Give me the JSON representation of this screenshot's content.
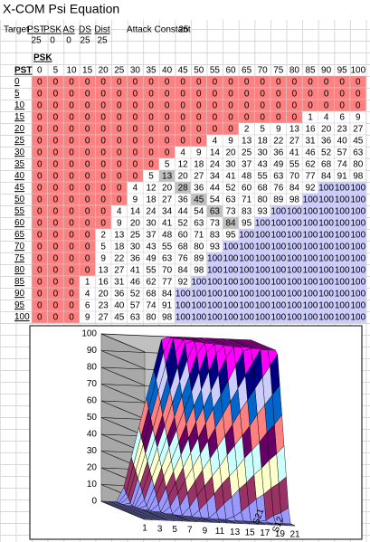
{
  "header": {
    "title": "X-COM Psi Equation"
  },
  "inputs": {
    "target_label": "Target",
    "labels": [
      "PST",
      "PSK",
      "AS",
      "DS",
      "Dist"
    ],
    "values": [
      25,
      0,
      0,
      25,
      25
    ],
    "attack_constant_label": "Attack Constant",
    "attack_constant": 25
  },
  "table": {
    "col_header": "PSK",
    "row_header": "PST",
    "cell_colors": {
      "zero": "#ff8080",
      "full": "#ccccff",
      "diagonal": "#c0c0c0",
      "other": "#ffffff"
    },
    "columns": [
      0,
      5,
      10,
      15,
      20,
      25,
      30,
      35,
      40,
      45,
      50,
      55,
      60,
      65,
      70,
      75,
      80,
      85,
      90,
      95,
      100
    ],
    "rows": [
      {
        "label": 0,
        "values": [
          0,
          0,
          0,
          0,
          0,
          0,
          0,
          0,
          0,
          0,
          0,
          0,
          0,
          0,
          0,
          0,
          0,
          0,
          0,
          0,
          0
        ]
      },
      {
        "label": 5,
        "values": [
          0,
          0,
          0,
          0,
          0,
          0,
          0,
          0,
          0,
          0,
          0,
          0,
          0,
          0,
          0,
          0,
          0,
          0,
          0,
          0,
          0
        ]
      },
      {
        "label": 10,
        "values": [
          0,
          0,
          0,
          0,
          0,
          0,
          0,
          0,
          0,
          0,
          0,
          0,
          0,
          0,
          0,
          0,
          0,
          0,
          0,
          0,
          0
        ]
      },
      {
        "label": 15,
        "values": [
          0,
          0,
          0,
          0,
          0,
          0,
          0,
          0,
          0,
          0,
          0,
          0,
          0,
          0,
          0,
          0,
          0,
          1,
          4,
          6,
          9
        ]
      },
      {
        "label": 20,
        "values": [
          0,
          0,
          0,
          0,
          0,
          0,
          0,
          0,
          0,
          0,
          0,
          0,
          0,
          2,
          5,
          9,
          13,
          16,
          20,
          23,
          27
        ]
      },
      {
        "label": 25,
        "values": [
          0,
          0,
          0,
          0,
          0,
          0,
          0,
          0,
          0,
          0,
          0,
          4,
          9,
          13,
          18,
          22,
          27,
          31,
          36,
          40,
          45
        ]
      },
      {
        "label": 30,
        "values": [
          0,
          0,
          0,
          0,
          0,
          0,
          0,
          0,
          0,
          4,
          9,
          14,
          20,
          25,
          30,
          36,
          41,
          46,
          52,
          57,
          63
        ]
      },
      {
        "label": 35,
        "values": [
          0,
          0,
          0,
          0,
          0,
          0,
          0,
          0,
          5,
          12,
          18,
          24,
          30,
          37,
          43,
          49,
          55,
          62,
          68,
          74,
          80
        ]
      },
      {
        "label": 40,
        "values": [
          0,
          0,
          0,
          0,
          0,
          0,
          0,
          5,
          13,
          20,
          27,
          34,
          41,
          48,
          55,
          63,
          70,
          77,
          84,
          91,
          98
        ]
      },
      {
        "label": 45,
        "values": [
          0,
          0,
          0,
          0,
          0,
          0,
          4,
          12,
          20,
          28,
          36,
          44,
          52,
          60,
          68,
          76,
          84,
          92,
          100,
          100,
          100
        ]
      },
      {
        "label": 50,
        "values": [
          0,
          0,
          0,
          0,
          0,
          0,
          9,
          18,
          27,
          36,
          45,
          54,
          63,
          71,
          80,
          89,
          98,
          100,
          100,
          100,
          100
        ]
      },
      {
        "label": 55,
        "values": [
          0,
          0,
          0,
          0,
          0,
          4,
          14,
          24,
          34,
          44,
          54,
          63,
          73,
          83,
          93,
          100,
          100,
          100,
          100,
          100,
          100
        ]
      },
      {
        "label": 60,
        "values": [
          0,
          0,
          0,
          0,
          0,
          9,
          20,
          30,
          41,
          52,
          63,
          73,
          84,
          95,
          100,
          100,
          100,
          100,
          100,
          100,
          100
        ]
      },
      {
        "label": 65,
        "values": [
          0,
          0,
          0,
          0,
          2,
          13,
          25,
          37,
          48,
          60,
          71,
          83,
          95,
          100,
          100,
          100,
          100,
          100,
          100,
          100,
          100
        ]
      },
      {
        "label": 70,
        "values": [
          0,
          0,
          0,
          0,
          5,
          18,
          30,
          43,
          55,
          68,
          80,
          93,
          100,
          100,
          100,
          100,
          100,
          100,
          100,
          100,
          100
        ]
      },
      {
        "label": 75,
        "values": [
          0,
          0,
          0,
          0,
          9,
          22,
          36,
          49,
          63,
          76,
          89,
          100,
          100,
          100,
          100,
          100,
          100,
          100,
          100,
          100,
          100
        ]
      },
      {
        "label": 80,
        "values": [
          0,
          0,
          0,
          0,
          13,
          27,
          41,
          55,
          70,
          84,
          98,
          100,
          100,
          100,
          100,
          100,
          100,
          100,
          100,
          100,
          100
        ]
      },
      {
        "label": 85,
        "values": [
          0,
          0,
          0,
          1,
          16,
          31,
          46,
          62,
          77,
          92,
          100,
          100,
          100,
          100,
          100,
          100,
          100,
          100,
          100,
          100,
          100
        ]
      },
      {
        "label": 90,
        "values": [
          0,
          0,
          0,
          4,
          20,
          36,
          52,
          68,
          84,
          100,
          100,
          100,
          100,
          100,
          100,
          100,
          100,
          100,
          100,
          100,
          100
        ]
      },
      {
        "label": 95,
        "values": [
          0,
          0,
          0,
          6,
          23,
          40,
          57,
          74,
          91,
          100,
          100,
          100,
          100,
          100,
          100,
          100,
          100,
          100,
          100,
          100,
          100
        ]
      },
      {
        "label": 100,
        "values": [
          0,
          0,
          0,
          9,
          27,
          45,
          63,
          80,
          98,
          100,
          100,
          100,
          100,
          100,
          100,
          100,
          100,
          100,
          100,
          100,
          100
        ]
      }
    ]
  },
  "chart_data": {
    "type": "surface",
    "ylim": [
      0,
      100
    ],
    "yticks": [
      0,
      10,
      20,
      30,
      40,
      50,
      60,
      70,
      80,
      90,
      100
    ],
    "categories": [
      "1",
      null,
      "3",
      null,
      "5",
      null,
      "7",
      null,
      "9",
      null,
      "11",
      null,
      "13",
      null,
      "15",
      null,
      "17",
      null,
      "19",
      null,
      "21"
    ],
    "series_labels": [
      null,
      null,
      null,
      null,
      null,
      null,
      null,
      null,
      null,
      null,
      null,
      "S12",
      null,
      null,
      null,
      null,
      null,
      null,
      null,
      null,
      "S21"
    ],
    "band_colors": [
      "#9999ff",
      "#993366",
      "#ffffcc",
      "#ccffff",
      "#660066",
      "#ff8080",
      "#0066cc",
      "#ccccff",
      "#000080",
      "#ff00ff"
    ]
  }
}
